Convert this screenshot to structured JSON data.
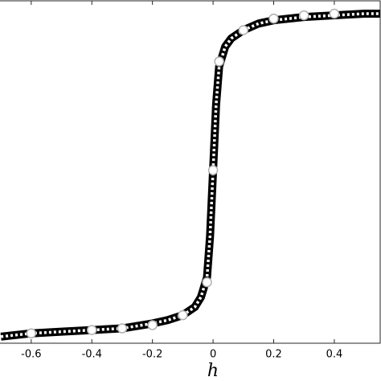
{
  "chart_data": {
    "type": "line",
    "xlabel": "h",
    "xlim": [
      -0.703,
      0.554
    ],
    "ylim": [
      -1.0,
      1.083
    ],
    "xticks": [
      -0.6,
      -0.4,
      -0.2,
      0,
      0.2,
      0.4
    ],
    "series": [
      {
        "color": "#000000",
        "style": "dotted-band",
        "x": [
          -0.7,
          -0.6,
          -0.5,
          -0.4,
          -0.3,
          -0.2,
          -0.15,
          -0.1,
          -0.06,
          -0.04,
          -0.02,
          -0.01,
          0,
          0.01,
          0.02,
          0.04,
          0.06,
          0.1,
          0.15,
          0.2,
          0.3,
          0.4,
          0.5,
          0.55
        ],
        "values": [
          -0.96,
          -0.94,
          -0.93,
          -0.92,
          -0.91,
          -0.88,
          -0.86,
          -0.83,
          -0.78,
          -0.72,
          -0.6,
          -0.35,
          0.05,
          0.45,
          0.68,
          0.8,
          0.85,
          0.9,
          0.94,
          0.96,
          0.98,
          0.99,
          1.0,
          1.0
        ]
      },
      {
        "color": "#ffffff",
        "style": "markers",
        "x": [
          -0.6,
          -0.4,
          -0.3,
          -0.2,
          -0.1,
          -0.02,
          0,
          0.02,
          0.1,
          0.2,
          0.3,
          0.4
        ],
        "values": [
          -0.94,
          -0.92,
          -0.91,
          -0.89,
          -0.83,
          -0.63,
          0.05,
          0.71,
          0.9,
          0.97,
          0.99,
          1.0
        ]
      }
    ]
  }
}
